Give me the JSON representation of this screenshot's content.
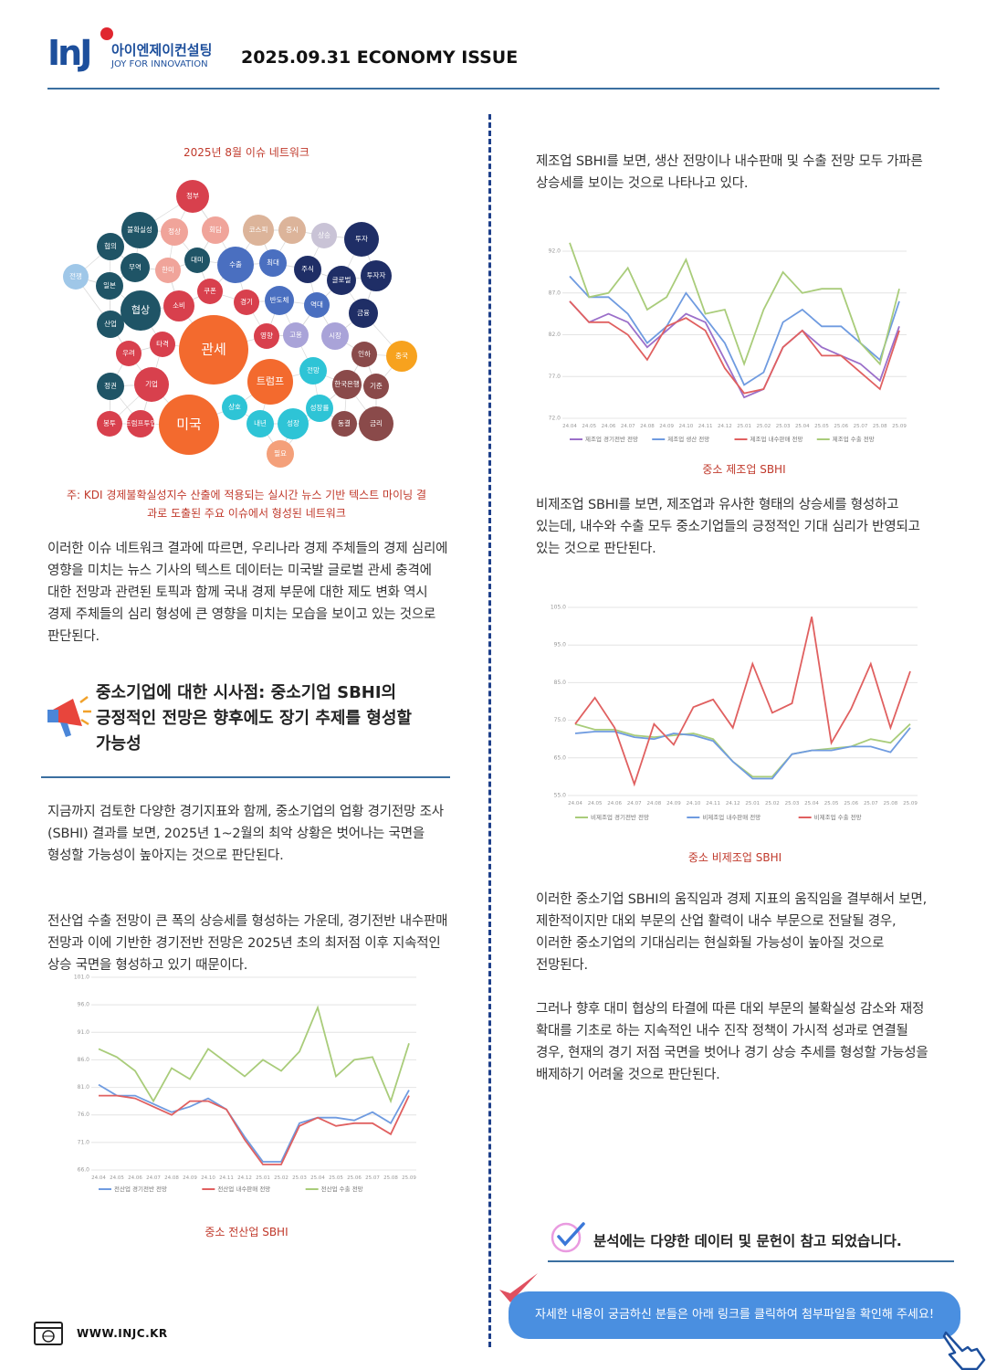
{
  "header": {
    "logo_mark": "InJ",
    "company": "아이엔제이컨설팅",
    "tagline": "JOY FOR INNOVATION",
    "issue": "2025.09.31 ECONOMY ISSUE"
  },
  "network": {
    "title": "2025년 8월 이슈 네트워크",
    "nodes": [
      {
        "label": "정부",
        "color": "#d8404d"
      },
      {
        "label": "불확실성",
        "color": "#1f5466"
      },
      {
        "label": "정상",
        "color": "#f0a49a"
      },
      {
        "label": "회담",
        "color": "#f0a49a"
      },
      {
        "label": "코스피",
        "color": "#dcb49a"
      },
      {
        "label": "증시",
        "color": "#dcb49a"
      },
      {
        "label": "상승",
        "color": "#c9c3d6"
      },
      {
        "label": "투자",
        "color": "#1f2e66"
      },
      {
        "label": "협의",
        "color": "#1f5466"
      },
      {
        "label": "무역",
        "color": "#1f5466"
      },
      {
        "label": "한미",
        "color": "#f0a49a"
      },
      {
        "label": "대미",
        "color": "#1f5466"
      },
      {
        "label": "수출",
        "color": "#4a6fc0"
      },
      {
        "label": "최대",
        "color": "#4a6fc0"
      },
      {
        "label": "주식",
        "color": "#1f2e66"
      },
      {
        "label": "글로벌",
        "color": "#1f2e66"
      },
      {
        "label": "투자자",
        "color": "#1f2e66"
      },
      {
        "label": "전쟁",
        "color": "#9fc7e8"
      },
      {
        "label": "일본",
        "color": "#1f5466"
      },
      {
        "label": "협상",
        "color": "#1f5466"
      },
      {
        "label": "쿠폰",
        "color": "#d8404d"
      },
      {
        "label": "소비",
        "color": "#d8404d"
      },
      {
        "label": "경기",
        "color": "#d8404d"
      },
      {
        "label": "반도체",
        "color": "#4a6fc0"
      },
      {
        "label": "역대",
        "color": "#4a6fc0"
      },
      {
        "label": "금융",
        "color": "#1f2e66"
      },
      {
        "label": "산업",
        "color": "#1f5466"
      },
      {
        "label": "영향",
        "color": "#d8404d"
      },
      {
        "label": "고용",
        "color": "#a9a3d8"
      },
      {
        "label": "시장",
        "color": "#a9a3d8"
      },
      {
        "label": "관세",
        "color": "#f36a2e"
      },
      {
        "label": "타격",
        "color": "#d8404d"
      },
      {
        "label": "우려",
        "color": "#d8404d"
      },
      {
        "label": "인하",
        "color": "#8a4a4a"
      },
      {
        "label": "중국",
        "color": "#f7a21e"
      },
      {
        "label": "전망",
        "color": "#2ec4d6"
      },
      {
        "label": "트럼프",
        "color": "#f36a2e"
      },
      {
        "label": "기업",
        "color": "#d8404d"
      },
      {
        "label": "정권",
        "color": "#1f5466"
      },
      {
        "label": "한국은행",
        "color": "#8a4a4a"
      },
      {
        "label": "기준",
        "color": "#8a4a4a"
      },
      {
        "label": "상호",
        "color": "#2ec4d6"
      },
      {
        "label": "성장률",
        "color": "#2ec4d6"
      },
      {
        "label": "미국",
        "color": "#f36a2e"
      },
      {
        "label": "봉투",
        "color": "#d8404d"
      },
      {
        "label": "트럼프투입",
        "color": "#d8404d"
      },
      {
        "label": "내년",
        "color": "#2ec4d6"
      },
      {
        "label": "성장",
        "color": "#2ec4d6"
      },
      {
        "label": "동결",
        "color": "#8a4a4a"
      },
      {
        "label": "금리",
        "color": "#8a4a4a"
      },
      {
        "label": "필요",
        "color": "#f4a07a"
      }
    ],
    "note": "주: KDI 경제불확실성지수 산출에 적용되는 실시간 뉴스 기반 텍스트 마이닝 결과로 도출된 주요 이슈에서 형성된 네트워크"
  },
  "left": {
    "paragraph_1": "이러한 이슈 네트워크 결과에 따르면, 우리나라 경제 주체들의 경제 심리에 영향을 미치는 뉴스 기사의 텍스트 데이터는 미국발 글로벌 관세 충격에 대한 전망과 관련된 토픽과 함께 국내 경제 부문에 대한 제도 변화 역시 경제 주체들의 심리 형성에 큰 영향을 미치는 모습을 보이고 있는 것으로 판단된다.",
    "section_heading": "중소기업에 대한 시사점: 중소기업 SBHI의 긍정적인 전망은 향후에도 장기 추제를 형성할 가능성",
    "paragraph_2": "지금까지 검토한 다양한 경기지표와 함께, 중소기업의 업황 경기전망 조사(SBHI) 결과를 보면, 2025년 1~2월의 최악 상황은 벗어나는 국면을 형성할 가능성이 높아지는 것으로 판단된다.",
    "paragraph_3": "전산업 수출 전망이 큰 폭의 상승세를 형성하는 가운데, 경기전반 내수판매 전망과 이에 기반한 경기전반 전망은 2025년 초의 최저점 이후 지속적인 상승 국면을 형성하고 있기 때문이다."
  },
  "right": {
    "paragraph_1": "제조업 SBHI를 보면, 생산 전망이나 내수판매 및 수출 전망 모두 가파른 상승세를 보이는 것으로 나타나고 있다.",
    "paragraph_2": "비제조업 SBHI를 보면, 제조업과 유사한 형태의 상승세를 형성하고 있는데, 내수와 수출 모두 중소기업들의 긍정적인 기대 심리가 반영되고 있는 것으로 판단된다.",
    "paragraph_3": "이러한 중소기업 SBHI의 움직임과 경제 지표의 움직임을 결부해서 보면, 제한적이지만 대외 부문의 산업 활력이 내수 부문으로 전달될 경우, 이러한 중소기업의 기대심리는 현실화될 가능성이 높아질 것으로 전망된다.",
    "paragraph_4": "그러나 향후 대미 협상의 타결에 따른 대외 부문의 불확실성 감소와 재정 확대를 기초로 하는 지속적인 내수 진작 정책이 가시적 성과로 연결될 경우, 현재의 경기 저점 국면을 벗어나 경기 상승 추세를 형성할 가능성을 배제하기 어려울 것으로 판단된다."
  },
  "chart_data": [
    {
      "type": "line",
      "caption": "중소 제조업 SBHI",
      "categories": [
        "24.04",
        "24.05",
        "24.06",
        "24.07",
        "24.08",
        "24.09",
        "24.10",
        "24.11",
        "24.12",
        "25.01",
        "25.02",
        "25.03",
        "25.04",
        "25.05",
        "25.06",
        "25.07",
        "25.08",
        "25.09"
      ],
      "ylim": [
        72,
        92
      ],
      "yticks": [
        {
          "value": 72,
          "label": "72.0"
        },
        {
          "value": 77,
          "label": "77.0"
        },
        {
          "value": 82,
          "label": "82.0"
        },
        {
          "value": 87,
          "label": "87.0"
        },
        {
          "value": 92,
          "label": "92.0"
        }
      ],
      "grid": true,
      "series": [
        {
          "name": "제조업 경기전반 전망",
          "color": "#9b6fc9",
          "values": [
            86,
            83.5,
            84.5,
            83.5,
            80.5,
            82.5,
            84.5,
            83.5,
            79,
            74.5,
            75.5,
            80.5,
            82.5,
            80.5,
            79.5,
            78.5,
            76.5,
            83
          ]
        },
        {
          "name": "제조업 생산 전망",
          "color": "#6f9be0",
          "values": [
            89,
            86.5,
            86.5,
            84.5,
            81,
            83,
            87,
            84,
            81,
            76,
            77.5,
            83.5,
            85,
            83,
            83,
            81,
            79,
            86
          ]
        },
        {
          "name": "제조업 내수판매 전망",
          "color": "#e06060",
          "values": [
            86,
            83.5,
            83.5,
            82,
            79,
            83,
            84,
            82.5,
            78,
            75,
            75.5,
            80.5,
            82.5,
            79.5,
            79.5,
            77.5,
            75.5,
            82.5
          ]
        },
        {
          "name": "제조업 수출 전망",
          "color": "#a9cc7a",
          "values": [
            93,
            86.5,
            87,
            90,
            85,
            86.5,
            91,
            84.5,
            85,
            78.5,
            85,
            89.5,
            87,
            87.5,
            87.5,
            81,
            78.5,
            87.5
          ]
        }
      ]
    },
    {
      "type": "line",
      "caption": "중소 비제조업 SBHI",
      "categories": [
        "24.04",
        "24.05",
        "24.06",
        "24.07",
        "24.08",
        "24.09",
        "24.10",
        "24.11",
        "24.12",
        "25.01",
        "25.02",
        "25.03",
        "25.04",
        "25.05",
        "25.06",
        "25.07",
        "25.08",
        "25.09"
      ],
      "ylim": [
        55,
        105
      ],
      "yticks": [
        {
          "value": 55,
          "label": "55.0"
        },
        {
          "value": 65,
          "label": "65.0"
        },
        {
          "value": 75,
          "label": "75.0"
        },
        {
          "value": 85,
          "label": "85.0"
        },
        {
          "value": 95,
          "label": "95.0"
        },
        {
          "value": 105,
          "label": "105.0"
        }
      ],
      "grid": true,
      "series": [
        {
          "name": "비제조업 경기전반 전망",
          "color": "#a9cc7a",
          "values": [
            74,
            72.5,
            72.5,
            71,
            70.5,
            71,
            71.5,
            70,
            64,
            60,
            60,
            66,
            67,
            67.5,
            68,
            70,
            69,
            74
          ]
        },
        {
          "name": "비제조업 내수판매 전망",
          "color": "#6f9be0",
          "values": [
            71.5,
            72,
            72,
            70.5,
            70,
            71.5,
            71,
            69.5,
            64,
            59.5,
            59.5,
            66,
            67,
            67,
            68,
            68,
            66.5,
            73
          ]
        },
        {
          "name": "비제조업 수출 전망",
          "color": "#e06060",
          "values": [
            74,
            81,
            73,
            58,
            74,
            68.5,
            78.5,
            80.5,
            73,
            90,
            77,
            79.5,
            102.5,
            69,
            78,
            90,
            73,
            88
          ]
        }
      ]
    },
    {
      "type": "line",
      "caption": "중소 전산업 SBHI",
      "categories": [
        "24.04",
        "24.05",
        "24.06",
        "24.07",
        "24.08",
        "24.09",
        "24.10",
        "24.11",
        "24.12",
        "25.01",
        "25.02",
        "25.03",
        "25.04",
        "25.05",
        "25.06",
        "25.07",
        "25.08",
        "25.09"
      ],
      "ylim": [
        66,
        101
      ],
      "yticks": [
        {
          "value": 66,
          "label": "66.0"
        },
        {
          "value": 71,
          "label": "71.0"
        },
        {
          "value": 76,
          "label": "76.0"
        },
        {
          "value": 81,
          "label": "81.0"
        },
        {
          "value": 86,
          "label": "86.0"
        },
        {
          "value": 91,
          "label": "91.0"
        },
        {
          "value": 96,
          "label": "96.0"
        },
        {
          "value": 101,
          "label": "101.0"
        }
      ],
      "grid": true,
      "series": [
        {
          "name": "전산업 경기전반 전망",
          "color": "#6f9be0",
          "values": [
            81.5,
            79.5,
            79.5,
            78,
            76.5,
            77.5,
            79,
            77,
            72,
            67.5,
            67.5,
            74.5,
            75.5,
            75.5,
            75,
            76.5,
            74.5,
            80.5
          ]
        },
        {
          "name": "전산업 내수판매 전망",
          "color": "#e06060",
          "values": [
            79.5,
            79.5,
            79,
            77.5,
            76,
            78.5,
            78.5,
            77,
            71.5,
            67,
            67,
            74,
            75.5,
            74,
            74.5,
            74.5,
            72.5,
            79.5
          ]
        },
        {
          "name": "전산업 수출 전망",
          "color": "#a9cc7a",
          "values": [
            88,
            86.5,
            84,
            78.5,
            84.5,
            82.5,
            88,
            85.5,
            83,
            86,
            84,
            87.5,
            95.5,
            83,
            86,
            86.5,
            78.5,
            89
          ]
        }
      ]
    }
  ],
  "footer": {
    "reference_note": "분석에는 다양한 데이터 및 문헌이 참고 되었습니다.",
    "link_notice": "자세한 내용이 궁금하신 분들은 아래 링크를 클릭하여 첨부파일을 확인해 주세요!",
    "website": "WWW.INJC.KR"
  }
}
